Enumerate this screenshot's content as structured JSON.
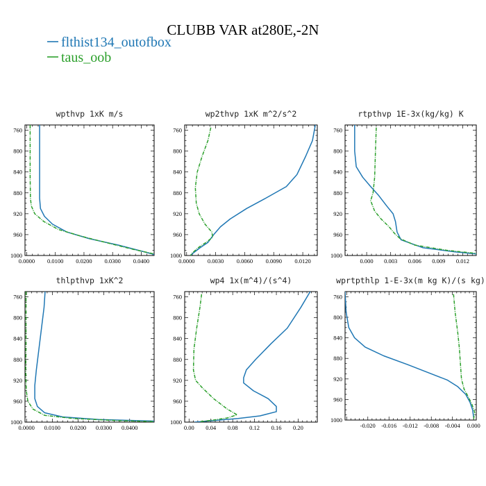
{
  "figure": {
    "title": "CLUBB VAR at280E,-2N",
    "legend": [
      {
        "label": "flthist134_outofbox",
        "color": "#1f77b4",
        "dash": "solid"
      },
      {
        "label": "taus_oob",
        "color": "#2ca02c",
        "dash": "dashed"
      }
    ]
  },
  "chart_data": [
    {
      "type": "line",
      "title": "wpthvp  1xK m/s",
      "xlim": [
        -0.0006,
        0.0445
      ],
      "ylim": [
        1000,
        750
      ],
      "xticks": [
        0.0,
        0.01,
        0.02,
        0.03,
        0.04
      ],
      "xticklabels": [
        "0.0000",
        "0.0100",
        "0.0200",
        "0.0300",
        "0.0400"
      ],
      "yticks": [
        760,
        800,
        840,
        880,
        920,
        960,
        1000
      ],
      "series": [
        {
          "name": "flthist134_outofbox",
          "points": [
            [
              0.0045,
              750
            ],
            [
              0.0045,
              800
            ],
            [
              0.0045,
              850
            ],
            [
              0.0045,
              890
            ],
            [
              0.0048,
              910
            ],
            [
              0.0062,
              925
            ],
            [
              0.009,
              940
            ],
            [
              0.014,
              955
            ],
            [
              0.022,
              968
            ],
            [
              0.032,
              980
            ],
            [
              0.039,
              990
            ],
            [
              0.0445,
              998
            ]
          ]
        },
        {
          "name": "taus_oob",
          "points": [
            [
              0.0012,
              750
            ],
            [
              0.0012,
              800
            ],
            [
              0.0012,
              850
            ],
            [
              0.0013,
              890
            ],
            [
              0.0016,
              905
            ],
            [
              0.0028,
              920
            ],
            [
              0.006,
              935
            ],
            [
              0.011,
              950
            ],
            [
              0.019,
              963
            ],
            [
              0.029,
              977
            ],
            [
              0.037,
              988
            ],
            [
              0.0445,
              997
            ]
          ]
        }
      ]
    },
    {
      "type": "line",
      "title": "wp2thvp  1xK m^2/s^2",
      "xlim": [
        -0.0002,
        0.0135
      ],
      "ylim": [
        1000,
        750
      ],
      "xticks": [
        0.0,
        0.003,
        0.006,
        0.009,
        0.012
      ],
      "xticklabels": [
        "0.0000",
        "0.0030",
        "0.0060",
        "0.0090",
        "0.0120"
      ],
      "yticks": [
        760,
        800,
        840,
        880,
        920,
        960,
        1000
      ],
      "series": [
        {
          "name": "flthist134_outofbox",
          "points": [
            [
              0.0133,
              750
            ],
            [
              0.013,
              780
            ],
            [
              0.0123,
              810
            ],
            [
              0.0114,
              845
            ],
            [
              0.0103,
              868
            ],
            [
              0.0082,
              890
            ],
            [
              0.0062,
              910
            ],
            [
              0.0045,
              930
            ],
            [
              0.0035,
              945
            ],
            [
              0.0028,
              960
            ],
            [
              0.0022,
              975
            ],
            [
              0.0014,
              985
            ],
            [
              0.0007,
              995
            ],
            [
              0.0004,
              1000
            ]
          ]
        },
        {
          "name": "taus_oob",
          "points": [
            [
              0.0025,
              755
            ],
            [
              0.0022,
              780
            ],
            [
              0.0016,
              810
            ],
            [
              0.0011,
              840
            ],
            [
              0.0009,
              870
            ],
            [
              0.001,
              900
            ],
            [
              0.0013,
              920
            ],
            [
              0.0019,
              940
            ],
            [
              0.0026,
              955
            ],
            [
              0.0027,
              965
            ],
            [
              0.002,
              975
            ],
            [
              0.0012,
              985
            ],
            [
              0.0006,
              995
            ],
            [
              0.0004,
              1000
            ]
          ]
        }
      ]
    },
    {
      "type": "line",
      "title": "rtpthvp  1E-3x(kg/kg) K",
      "xlim": [
        -0.0027,
        0.0137
      ],
      "ylim": [
        1000,
        750
      ],
      "xticks": [
        0.0,
        0.003,
        0.006,
        0.009,
        0.012
      ],
      "xticklabels": [
        "0.000",
        "0.003",
        "0.006",
        "0.009",
        "0.012"
      ],
      "yticks": [
        760,
        800,
        840,
        880,
        920,
        960,
        1000
      ],
      "series": [
        {
          "name": "flthist134_outofbox",
          "points": [
            [
              -0.0015,
              750
            ],
            [
              -0.0015,
              800
            ],
            [
              -0.0013,
              830
            ],
            [
              -0.0005,
              850
            ],
            [
              0.0005,
              868
            ],
            [
              0.0015,
              885
            ],
            [
              0.0025,
              905
            ],
            [
              0.0033,
              920
            ],
            [
              0.0036,
              935
            ],
            [
              0.0038,
              955
            ],
            [
              0.0043,
              970
            ],
            [
              0.007,
              985
            ],
            [
              0.011,
              993
            ],
            [
              0.0137,
              997
            ]
          ]
        },
        {
          "name": "taus_oob",
          "points": [
            [
              0.0012,
              755
            ],
            [
              0.0011,
              800
            ],
            [
              0.001,
              850
            ],
            [
              0.0008,
              880
            ],
            [
              0.0005,
              895
            ],
            [
              0.001,
              915
            ],
            [
              0.0018,
              930
            ],
            [
              0.0028,
              945
            ],
            [
              0.0035,
              958
            ],
            [
              0.0042,
              968
            ],
            [
              0.006,
              980
            ],
            [
              0.01,
              990
            ],
            [
              0.0137,
              996
            ]
          ]
        }
      ]
    },
    {
      "type": "line",
      "title": "thlpthvp  1xK^2",
      "xlim": [
        -0.0006,
        0.0495
      ],
      "ylim": [
        1000,
        750
      ],
      "xticks": [
        0.0,
        0.01,
        0.02,
        0.03,
        0.04
      ],
      "xticklabels": [
        "0.0000",
        "0.0100",
        "0.0200",
        "0.0300",
        "0.0400"
      ],
      "yticks": [
        760,
        800,
        840,
        880,
        920,
        960,
        1000
      ],
      "series": [
        {
          "name": "flthist134_outofbox",
          "points": [
            [
              0.0072,
              750
            ],
            [
              0.0068,
              780
            ],
            [
              0.0058,
              820
            ],
            [
              0.0048,
              860
            ],
            [
              0.0038,
              900
            ],
            [
              0.0032,
              930
            ],
            [
              0.0032,
              955
            ],
            [
              0.0042,
              970
            ],
            [
              0.007,
              982
            ],
            [
              0.014,
              990
            ],
            [
              0.028,
              995
            ],
            [
              0.0495,
              998
            ]
          ]
        },
        {
          "name": "taus_oob",
          "points": [
            [
              -0.0002,
              750
            ],
            [
              -0.0002,
              800
            ],
            [
              -0.0002,
              850
            ],
            [
              -0.0003,
              900
            ],
            [
              -0.0001,
              940
            ],
            [
              0.0005,
              960
            ],
            [
              0.0025,
              975
            ],
            [
              0.007,
              987
            ],
            [
              0.018,
              993
            ],
            [
              0.035,
              997
            ],
            [
              0.0495,
              999
            ]
          ]
        }
      ]
    },
    {
      "type": "line",
      "title": "wp4  1x(m^4)/(s^4)",
      "xlim": [
        -0.008,
        0.235
      ],
      "ylim": [
        1000,
        750
      ],
      "xticks": [
        0.0,
        0.04,
        0.08,
        0.12,
        0.16,
        0.2
      ],
      "xticklabels": [
        "0.00",
        "0.04",
        "0.08",
        "0.12",
        "0.16",
        "0.20"
      ],
      "yticks": [
        760,
        800,
        840,
        880,
        920,
        960,
        1000
      ],
      "series": [
        {
          "name": "flthist134_outofbox",
          "points": [
            [
              0.222,
              750
            ],
            [
              0.205,
              780
            ],
            [
              0.18,
              820
            ],
            [
              0.15,
              850
            ],
            [
              0.122,
              880
            ],
            [
              0.105,
              900
            ],
            [
              0.1,
              915
            ],
            [
              0.1,
              925
            ],
            [
              0.118,
              940
            ],
            [
              0.145,
              955
            ],
            [
              0.16,
              970
            ],
            [
              0.16,
              980
            ],
            [
              0.13,
              988
            ],
            [
              0.09,
              993
            ],
            [
              0.045,
              997
            ],
            [
              0.01,
              1000
            ]
          ]
        },
        {
          "name": "taus_oob",
          "points": [
            [
              0.023,
              755
            ],
            [
              0.02,
              780
            ],
            [
              0.014,
              820
            ],
            [
              0.009,
              860
            ],
            [
              0.008,
              900
            ],
            [
              0.012,
              920
            ],
            [
              0.025,
              935
            ],
            [
              0.045,
              955
            ],
            [
              0.07,
              975
            ],
            [
              0.088,
              986
            ],
            [
              0.07,
              992
            ],
            [
              0.045,
              996
            ],
            [
              0.02,
              999
            ]
          ]
        }
      ]
    },
    {
      "type": "line",
      "title": "wprtpthlp  1-E-3x(m kg K)/(s kg)",
      "xlim": [
        -0.0243,
        0.0005
      ],
      "ylim": [
        1000,
        750
      ],
      "xticks": [
        -0.02,
        -0.016,
        -0.012,
        -0.008,
        -0.004,
        0.0
      ],
      "xticklabels": [
        "-0.020",
        "-0.016",
        "-0.012",
        "-0.008",
        "-0.004",
        "0.000"
      ],
      "yticks": [
        760,
        800,
        840,
        880,
        920,
        960,
        1000
      ],
      "series": [
        {
          "name": "flthist134_outofbox",
          "points": [
            [
              -0.0243,
              750
            ],
            [
              -0.0241,
              790
            ],
            [
              -0.0236,
              820
            ],
            [
              -0.0225,
              840
            ],
            [
              -0.0205,
              858
            ],
            [
              -0.017,
              875
            ],
            [
              -0.0125,
              892
            ],
            [
              -0.0085,
              908
            ],
            [
              -0.005,
              922
            ],
            [
              -0.003,
              935
            ],
            [
              -0.0015,
              950
            ],
            [
              -0.0007,
              965
            ],
            [
              -0.0002,
              980
            ],
            [
              0.0,
              995
            ]
          ]
        },
        {
          "name": "taus_oob",
          "points": [
            [
              -0.0038,
              755
            ],
            [
              -0.0035,
              790
            ],
            [
              -0.003,
              830
            ],
            [
              -0.0027,
              860
            ],
            [
              -0.0025,
              890
            ],
            [
              -0.0023,
              920
            ],
            [
              -0.0018,
              940
            ],
            [
              -0.001,
              955
            ],
            [
              -0.0003,
              970
            ],
            [
              0.0002,
              985
            ],
            [
              0.0,
              998
            ]
          ]
        }
      ]
    }
  ]
}
